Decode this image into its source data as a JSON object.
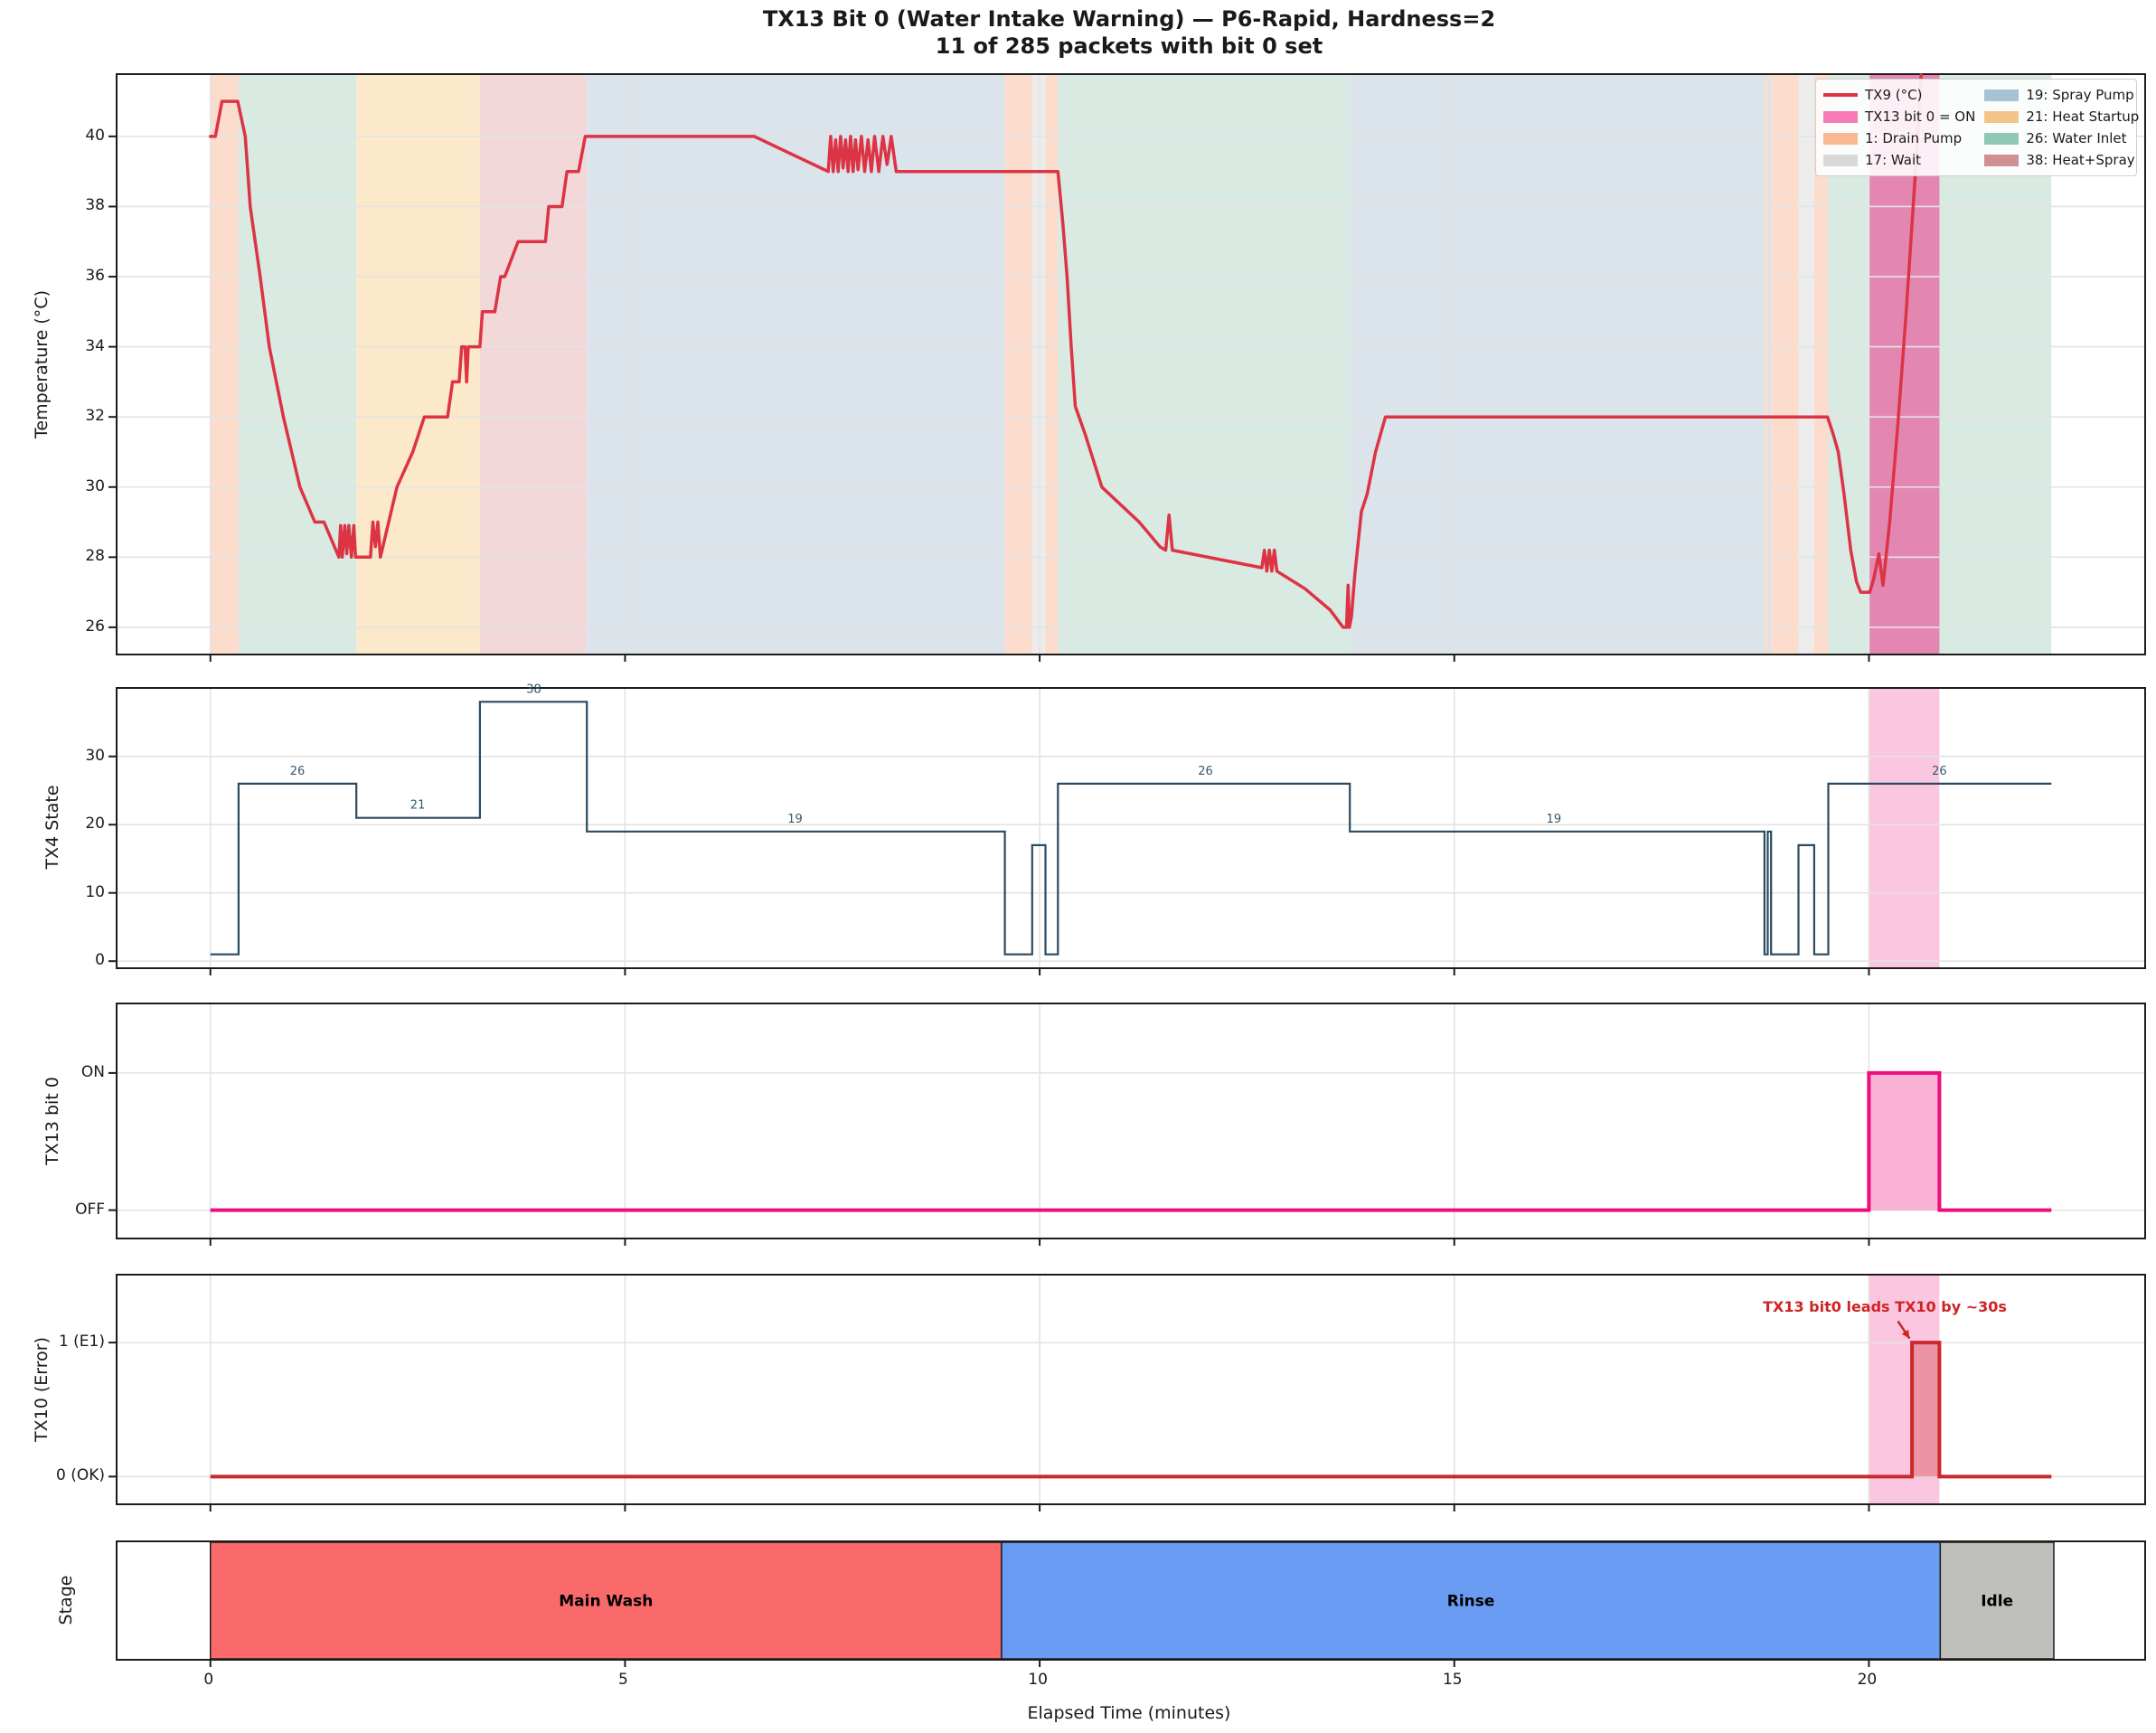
{
  "title": "TX13 Bit 0 (Water Intake Warning) — P6-Rapid, Hardness=2",
  "subtitle": "11 of 285 packets with bit 0 set",
  "legend": {
    "entries": [
      {
        "label": "TX9 (°C)",
        "swatch": "line",
        "color": "#dc3444"
      },
      {
        "label": "TX13 bit 0 = ON",
        "swatch": "patch",
        "color": "#f87ab5"
      },
      {
        "label": "1: Drain Pump",
        "swatch": "patch",
        "color": "#f8b992"
      },
      {
        "label": "17: Wait",
        "swatch": "patch",
        "color": "#d9d9d9"
      },
      {
        "label": "19: Spray Pump",
        "swatch": "patch",
        "color": "#a8c2d5"
      },
      {
        "label": "21: Heat Startup",
        "swatch": "patch",
        "color": "#f3c487"
      },
      {
        "label": "26: Water Inlet",
        "swatch": "patch",
        "color": "#8fc8b5"
      },
      {
        "label": "38: Heat+Spray",
        "swatch": "patch",
        "color": "#d08f90"
      }
    ]
  },
  "chart_data": {
    "type": "line",
    "x_axis": {
      "label": "Elapsed Time (minutes)",
      "xlim": [
        -1.12,
        23.32
      ],
      "ticks": [
        0,
        5,
        10,
        15,
        20
      ]
    },
    "grid_color": "#e3e3e3",
    "state_colors_bg": {
      "1": "#fcdccd",
      "17": "#ececec",
      "19": "#dbe3eb",
      "21": "#fce8cb",
      "26": "#d9eae3",
      "38": "#f3d8da"
    },
    "panels": [
      {
        "id": "temperature",
        "ylabel": "Temperature (°C)",
        "ylim": [
          25.25,
          41.75
        ],
        "yticks": [
          26,
          28,
          30,
          32,
          34,
          36,
          38,
          40
        ],
        "state_spans": [
          [
            0,
            0.34,
            "1"
          ],
          [
            0.34,
            1.76,
            "26"
          ],
          [
            1.76,
            3.25,
            "21"
          ],
          [
            3.25,
            4.54,
            "38"
          ],
          [
            4.54,
            9.58,
            "19"
          ],
          [
            9.58,
            9.91,
            "1"
          ],
          [
            9.91,
            10.07,
            "17"
          ],
          [
            10.07,
            10.22,
            "1"
          ],
          [
            10.22,
            13.74,
            "26"
          ],
          [
            13.74,
            18.74,
            "19"
          ],
          [
            18.74,
            18.78,
            "1"
          ],
          [
            18.78,
            18.82,
            "19"
          ],
          [
            18.82,
            19.15,
            "1"
          ],
          [
            19.15,
            19.34,
            "17"
          ],
          [
            19.34,
            19.51,
            "1"
          ],
          [
            19.51,
            22.2,
            "26"
          ]
        ],
        "band": {
          "start": 20.0,
          "end": 20.85,
          "fill": "rgba(233,75,148,0.62)"
        },
        "series": {
          "name": "TX9 (°C)",
          "color": "#dc3444",
          "width": 3.5,
          "points": [
            [
              0,
              40
            ],
            [
              0.06,
              40
            ],
            [
              0.14,
              41
            ],
            [
              0.33,
              41
            ],
            [
              0.42,
              40
            ],
            [
              0.48,
              38
            ],
            [
              0.6,
              36
            ],
            [
              0.71,
              34
            ],
            [
              0.88,
              32
            ],
            [
              1.08,
              30
            ],
            [
              1.26,
              29
            ],
            [
              1.37,
              29
            ],
            [
              1.55,
              28
            ],
            [
              1.57,
              28.9
            ],
            [
              1.59,
              28
            ],
            [
              1.62,
              28.9
            ],
            [
              1.645,
              28.1
            ],
            [
              1.67,
              28.9
            ],
            [
              1.7,
              28
            ],
            [
              1.73,
              28.9
            ],
            [
              1.75,
              28
            ],
            [
              1.93,
              28
            ],
            [
              1.96,
              29
            ],
            [
              1.99,
              28.3
            ],
            [
              2.02,
              29
            ],
            [
              2.05,
              28
            ],
            [
              2.25,
              30
            ],
            [
              2.44,
              31
            ],
            [
              2.58,
              32
            ],
            [
              2.86,
              32
            ],
            [
              2.92,
              33
            ],
            [
              3.0,
              33
            ],
            [
              3.03,
              34
            ],
            [
              3.07,
              34
            ],
            [
              3.09,
              33
            ],
            [
              3.11,
              34
            ],
            [
              3.25,
              34
            ],
            [
              3.28,
              35
            ],
            [
              3.43,
              35
            ],
            [
              3.5,
              36
            ],
            [
              3.55,
              36
            ],
            [
              3.71,
              37
            ],
            [
              4.04,
              37
            ],
            [
              4.08,
              38
            ],
            [
              4.24,
              38
            ],
            [
              4.3,
              39
            ],
            [
              4.44,
              39
            ],
            [
              4.52,
              40
            ],
            [
              6.56,
              40
            ],
            [
              7.45,
              39
            ],
            [
              7.48,
              40
            ],
            [
              7.51,
              39
            ],
            [
              7.54,
              39.9
            ],
            [
              7.57,
              39
            ],
            [
              7.6,
              40
            ],
            [
              7.63,
              39.1
            ],
            [
              7.66,
              39.9
            ],
            [
              7.69,
              39
            ],
            [
              7.72,
              40
            ],
            [
              7.75,
              39
            ],
            [
              7.78,
              39.9
            ],
            [
              7.81,
              39.05
            ],
            [
              7.85,
              40
            ],
            [
              7.89,
              39
            ],
            [
              7.93,
              39.9
            ],
            [
              7.97,
              39
            ],
            [
              8.01,
              40
            ],
            [
              8.06,
              39
            ],
            [
              8.11,
              40
            ],
            [
              8.16,
              39.2
            ],
            [
              8.21,
              40
            ],
            [
              8.27,
              39
            ],
            [
              10.22,
              39
            ],
            [
              10.28,
              37.5
            ],
            [
              10.33,
              36
            ],
            [
              10.38,
              34
            ],
            [
              10.43,
              32.3
            ],
            [
              10.55,
              31.5
            ],
            [
              10.75,
              30
            ],
            [
              11.2,
              29
            ],
            [
              11.45,
              28.3
            ],
            [
              11.52,
              28.2
            ],
            [
              11.56,
              29.2
            ],
            [
              11.6,
              28.2
            ],
            [
              12.68,
              27.7
            ],
            [
              12.71,
              28.2
            ],
            [
              12.74,
              27.6
            ],
            [
              12.77,
              28.2
            ],
            [
              12.8,
              27.6
            ],
            [
              12.83,
              28.2
            ],
            [
              12.86,
              27.6
            ],
            [
              13.2,
              27.1
            ],
            [
              13.5,
              26.5
            ],
            [
              13.66,
              26
            ],
            [
              13.7,
              26
            ],
            [
              13.72,
              27.2
            ],
            [
              13.735,
              26
            ],
            [
              13.76,
              26.3
            ],
            [
              13.8,
              27.5
            ],
            [
              13.88,
              29.3
            ],
            [
              13.95,
              29.8
            ],
            [
              14.05,
              31
            ],
            [
              14.17,
              32
            ],
            [
              19.5,
              32
            ],
            [
              19.57,
              31.5
            ],
            [
              19.63,
              31
            ],
            [
              19.7,
              29.8
            ],
            [
              19.78,
              28.2
            ],
            [
              19.85,
              27.3
            ],
            [
              19.9,
              27
            ],
            [
              20.01,
              27
            ],
            [
              20.06,
              27.4
            ],
            [
              20.12,
              28.1
            ],
            [
              20.17,
              27.2
            ],
            [
              20.25,
              29
            ],
            [
              20.35,
              31.8
            ],
            [
              20.45,
              35
            ],
            [
              20.55,
              38.6
            ],
            [
              20.63,
              41.9
            ]
          ]
        }
      },
      {
        "id": "tx4-state",
        "ylabel": "TX4 State",
        "ylim": [
          -0.9,
          39.9
        ],
        "yticks": [
          0,
          10,
          20,
          30
        ],
        "band": {
          "start": 20.0,
          "end": 20.85,
          "fill": "rgba(246,121,181,0.42)"
        },
        "step_series": {
          "color": "#2b4a60",
          "width": 2.2,
          "end": 22.2,
          "points": [
            [
              0,
              1
            ],
            [
              0.34,
              26
            ],
            [
              1.76,
              21
            ],
            [
              3.25,
              38
            ],
            [
              4.54,
              19
            ],
            [
              9.58,
              1
            ],
            [
              9.91,
              17
            ],
            [
              10.07,
              1
            ],
            [
              10.22,
              26
            ],
            [
              13.74,
              19
            ],
            [
              18.74,
              1
            ],
            [
              18.78,
              19
            ],
            [
              18.82,
              1
            ],
            [
              19.15,
              17
            ],
            [
              19.34,
              1
            ],
            [
              19.51,
              26
            ]
          ]
        },
        "step_labels": [
          [
            1.05,
            26
          ],
          [
            2.5,
            21
          ],
          [
            3.9,
            38
          ],
          [
            7.05,
            19
          ],
          [
            12.0,
            26
          ],
          [
            16.2,
            19
          ],
          [
            20.85,
            26
          ]
        ],
        "step_label_color": "#33596e"
      },
      {
        "id": "tx13-bit0",
        "ylabel": "TX13 bit 0",
        "ylim": [
          -0.2,
          1.5
        ],
        "yticks_labeled": [
          [
            1,
            "ON"
          ],
          [
            0,
            "OFF"
          ]
        ],
        "step_series": {
          "color": "#ee0d7d",
          "width": 4,
          "end": 22.2,
          "fill": "rgba(247,127,184,0.6)",
          "points": [
            [
              0,
              0
            ],
            [
              20.0,
              1
            ],
            [
              20.85,
              0
            ]
          ]
        }
      },
      {
        "id": "tx10-error",
        "ylabel": "TX10 (Error)",
        "ylim": [
          -0.2,
          1.5
        ],
        "yticks_labeled": [
          [
            1,
            "1 (E1)"
          ],
          [
            0,
            "0 (OK)"
          ]
        ],
        "band": {
          "start": 20.0,
          "end": 20.85,
          "fill": "rgba(246,121,181,0.42)"
        },
        "step_series": {
          "color": "#cc282c",
          "width": 4,
          "end": 22.2,
          "fill": "rgba(204,40,44,0.32)",
          "points": [
            [
              0,
              0
            ],
            [
              20.52,
              1
            ],
            [
              20.85,
              0
            ]
          ]
        },
        "annotation": {
          "text": "TX13 bit0 leads TX10 by ~30s",
          "color": "#cf2424",
          "arrow": {
            "from": [
              20.35,
              1.16
            ],
            "to": [
              20.49,
              1.03
            ]
          }
        }
      },
      {
        "id": "stage",
        "ylabel": "Stage",
        "stages": [
          {
            "start": 0,
            "end": 9.54,
            "label": "Main Wash",
            "color": "#fa6a6a"
          },
          {
            "start": 9.54,
            "end": 20.86,
            "label": "Rinse",
            "color": "#6b9cf3"
          },
          {
            "start": 20.86,
            "end": 22.23,
            "label": "Idle",
            "color": "#bfbfbc"
          }
        ]
      }
    ]
  }
}
